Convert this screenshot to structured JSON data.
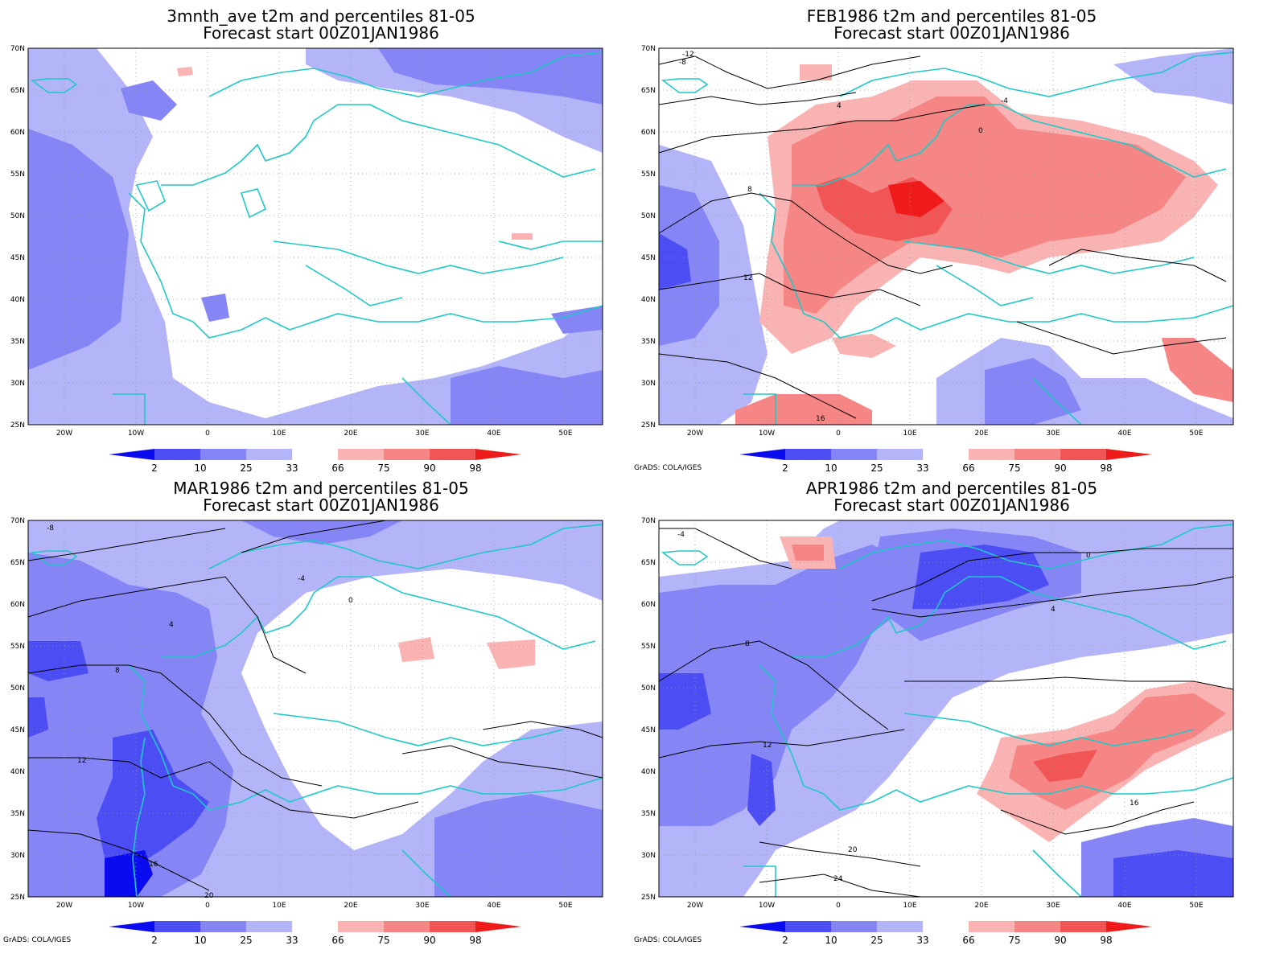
{
  "colors": {
    "blue_dark": "#0b0bf0",
    "blue_mid": "#4d4df4",
    "blue_light": "#8585f6",
    "blue_pale": "#b4b4f9",
    "red_pale": "#f9b3b3",
    "red_light": "#f68585",
    "red_mid": "#f25555",
    "red_dark": "#ef1b1b",
    "coast": "#20c8c8",
    "contour": "#000000",
    "grid": "#999999"
  },
  "axes": {
    "lat_labels": [
      "70N",
      "65N",
      "60N",
      "55N",
      "50N",
      "45N",
      "40N",
      "35N",
      "30N",
      "25N"
    ],
    "lon_labels": [
      "20W",
      "10W",
      "0",
      "10E",
      "20E",
      "30E",
      "40E",
      "50E"
    ]
  },
  "colorbar": {
    "labels": [
      "2",
      "10",
      "25",
      "33",
      "66",
      "75",
      "90",
      "98"
    ]
  },
  "credit": "GrADS: COLA/IGES",
  "panels": [
    {
      "title_line1": "3mnth_ave t2m and percentiles 81-05",
      "title_line2": "Forecast start 00Z01JAN1986",
      "show_credit": false,
      "contour_labels": []
    },
    {
      "title_line1": "FEB1986 t2m and percentiles 81-05",
      "title_line2": "Forecast start 00Z01JAN1986",
      "show_credit": true,
      "contour_labels": [
        "-12",
        "-8",
        "-4",
        "0",
        "4",
        "8",
        "12",
        "16"
      ]
    },
    {
      "title_line1": "MAR1986 t2m and percentiles 81-05",
      "title_line2": "Forecast start 00Z01JAN1986",
      "show_credit": true,
      "contour_labels": [
        "-8",
        "-4",
        "0",
        "4",
        "8",
        "12",
        "16",
        "20"
      ]
    },
    {
      "title_line1": "APR1986 t2m and percentiles 81-05",
      "title_line2": "Forecast start 00Z01JAN1986",
      "show_credit": true,
      "contour_labels": [
        "-4",
        "0",
        "4",
        "8",
        "12",
        "16",
        "20",
        "24"
      ]
    }
  ]
}
